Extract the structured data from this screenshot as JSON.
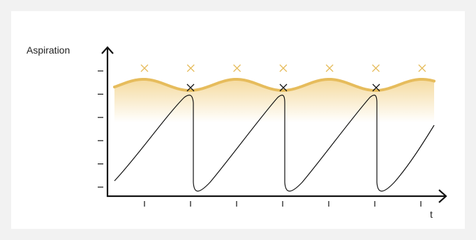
{
  "diagram": {
    "y_axis_label": "Aspiration",
    "x_axis_label": "t",
    "colors": {
      "axis": "#111111",
      "wave": "#e6bc5c",
      "gradient_top": "#f3d48e",
      "marker_top": "#e6bc5c",
      "marker_peak": "#111111",
      "curve": "#111111",
      "background": "#f2f2f2",
      "panel": "#ffffff"
    },
    "top_marker_count": 7,
    "peak_marker_count": 3,
    "y_tick_count": 6,
    "x_tick_count": 7
  }
}
